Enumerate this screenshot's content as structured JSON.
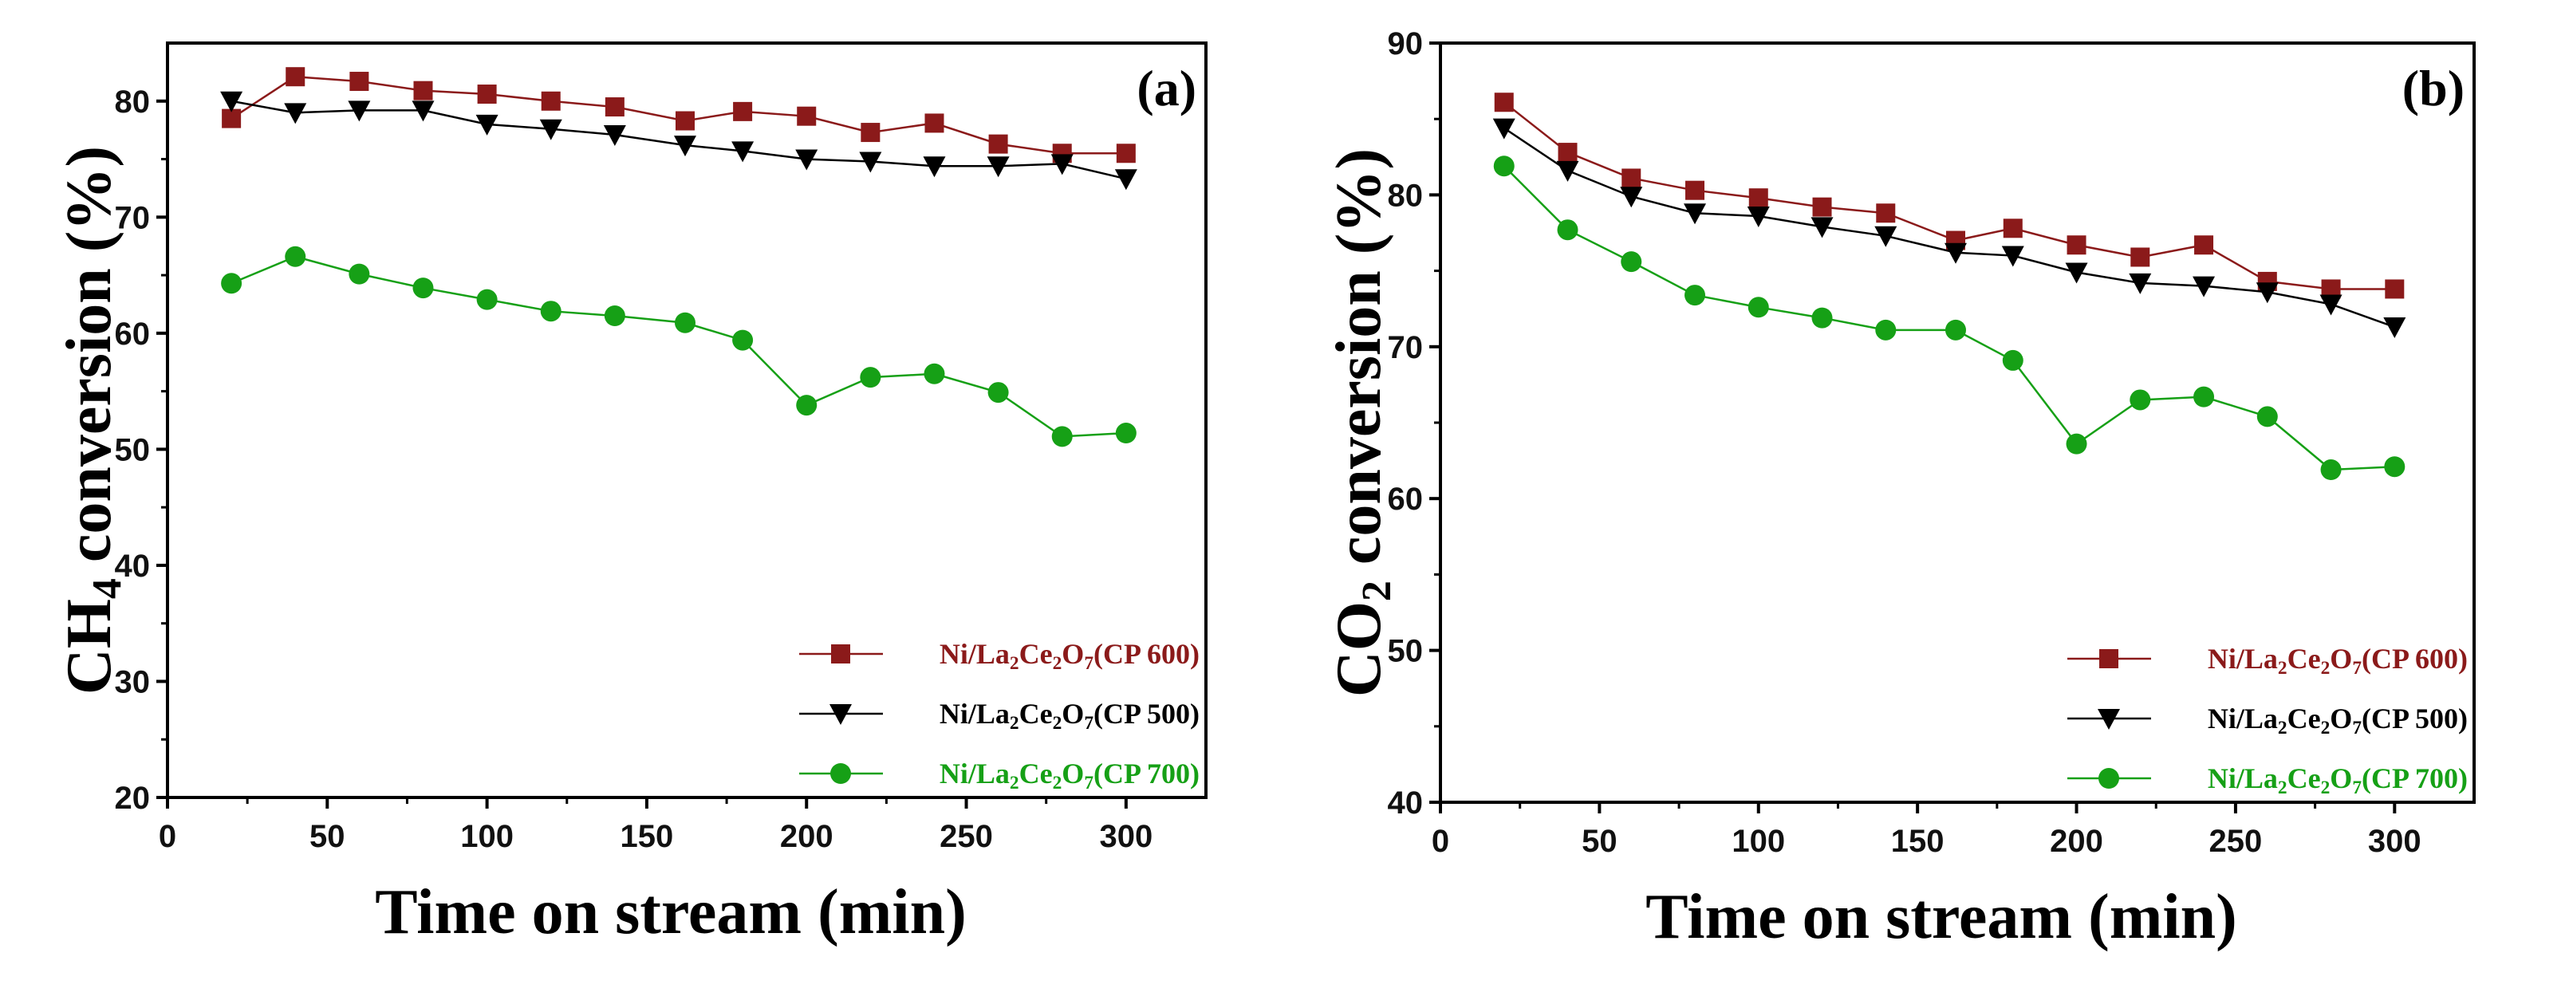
{
  "chart_data": [
    {
      "type": "line",
      "panel_label": "(a)",
      "xlabel": "Time on stream (min)",
      "ylabel": "CH4 conversion (%)",
      "xlim": [
        0,
        325
      ],
      "ylim": [
        20,
        85
      ],
      "xticks": [
        0,
        50,
        100,
        150,
        200,
        250,
        300
      ],
      "yticks": [
        20,
        30,
        40,
        50,
        60,
        70,
        80
      ],
      "legend_position": "bottom-right",
      "x": [
        20,
        40,
        60,
        80,
        100,
        120,
        140,
        162,
        180,
        200,
        220,
        240,
        260,
        280,
        300
      ],
      "series": [
        {
          "name": "Ni/La2Ce2O7(CP 600)",
          "color": "#8b1a1a",
          "marker": "square",
          "values": [
            78.5,
            82.1,
            81.7,
            80.9,
            80.6,
            80.0,
            79.5,
            78.3,
            79.1,
            78.7,
            77.3,
            78.1,
            76.3,
            75.5,
            75.5
          ]
        },
        {
          "name": "Ni/La2Ce2O7(CP 500)",
          "color": "#000000",
          "marker": "triangle-down",
          "values": [
            80.0,
            79.0,
            79.2,
            79.2,
            78.0,
            77.6,
            77.1,
            76.2,
            75.7,
            75.0,
            74.8,
            74.4,
            74.4,
            74.6,
            73.3
          ]
        },
        {
          "name": "Ni/La2Ce2O7(CP 700)",
          "color": "#16a016",
          "marker": "circle",
          "values": [
            64.3,
            66.6,
            65.1,
            63.9,
            62.9,
            61.9,
            61.5,
            60.9,
            59.4,
            53.8,
            56.2,
            56.5,
            54.9,
            51.1,
            51.4
          ]
        }
      ]
    },
    {
      "type": "line",
      "panel_label": "(b)",
      "xlabel": "Time on stream (min)",
      "ylabel": "CO2 conversion (%)",
      "xlim": [
        0,
        325
      ],
      "ylim": [
        40,
        90
      ],
      "xticks": [
        0,
        50,
        100,
        150,
        200,
        250,
        300
      ],
      "yticks": [
        40,
        50,
        60,
        70,
        80,
        90
      ],
      "legend_position": "bottom-right",
      "x": [
        20,
        40,
        60,
        80,
        100,
        120,
        140,
        162,
        180,
        200,
        220,
        240,
        260,
        280,
        300
      ],
      "series": [
        {
          "name": "Ni/La2Ce2O7(CP 600)",
          "color": "#8b1a1a",
          "marker": "square",
          "values": [
            86.1,
            82.8,
            81.1,
            80.3,
            79.8,
            79.2,
            78.8,
            77.0,
            77.8,
            76.7,
            75.9,
            76.7,
            74.3,
            73.8,
            73.8
          ]
        },
        {
          "name": "Ni/La2Ce2O7(CP 500)",
          "color": "#000000",
          "marker": "triangle-down",
          "values": [
            84.4,
            81.6,
            79.9,
            78.8,
            78.6,
            77.9,
            77.3,
            76.2,
            76.0,
            74.9,
            74.2,
            74.0,
            73.6,
            72.8,
            71.3
          ]
        },
        {
          "name": "Ni/La2Ce2O7(CP 700)",
          "color": "#16a016",
          "marker": "circle",
          "values": [
            81.9,
            77.7,
            75.6,
            73.4,
            72.6,
            71.9,
            71.1,
            71.1,
            69.1,
            63.6,
            66.5,
            66.7,
            65.4,
            61.9,
            62.1
          ]
        }
      ]
    }
  ]
}
